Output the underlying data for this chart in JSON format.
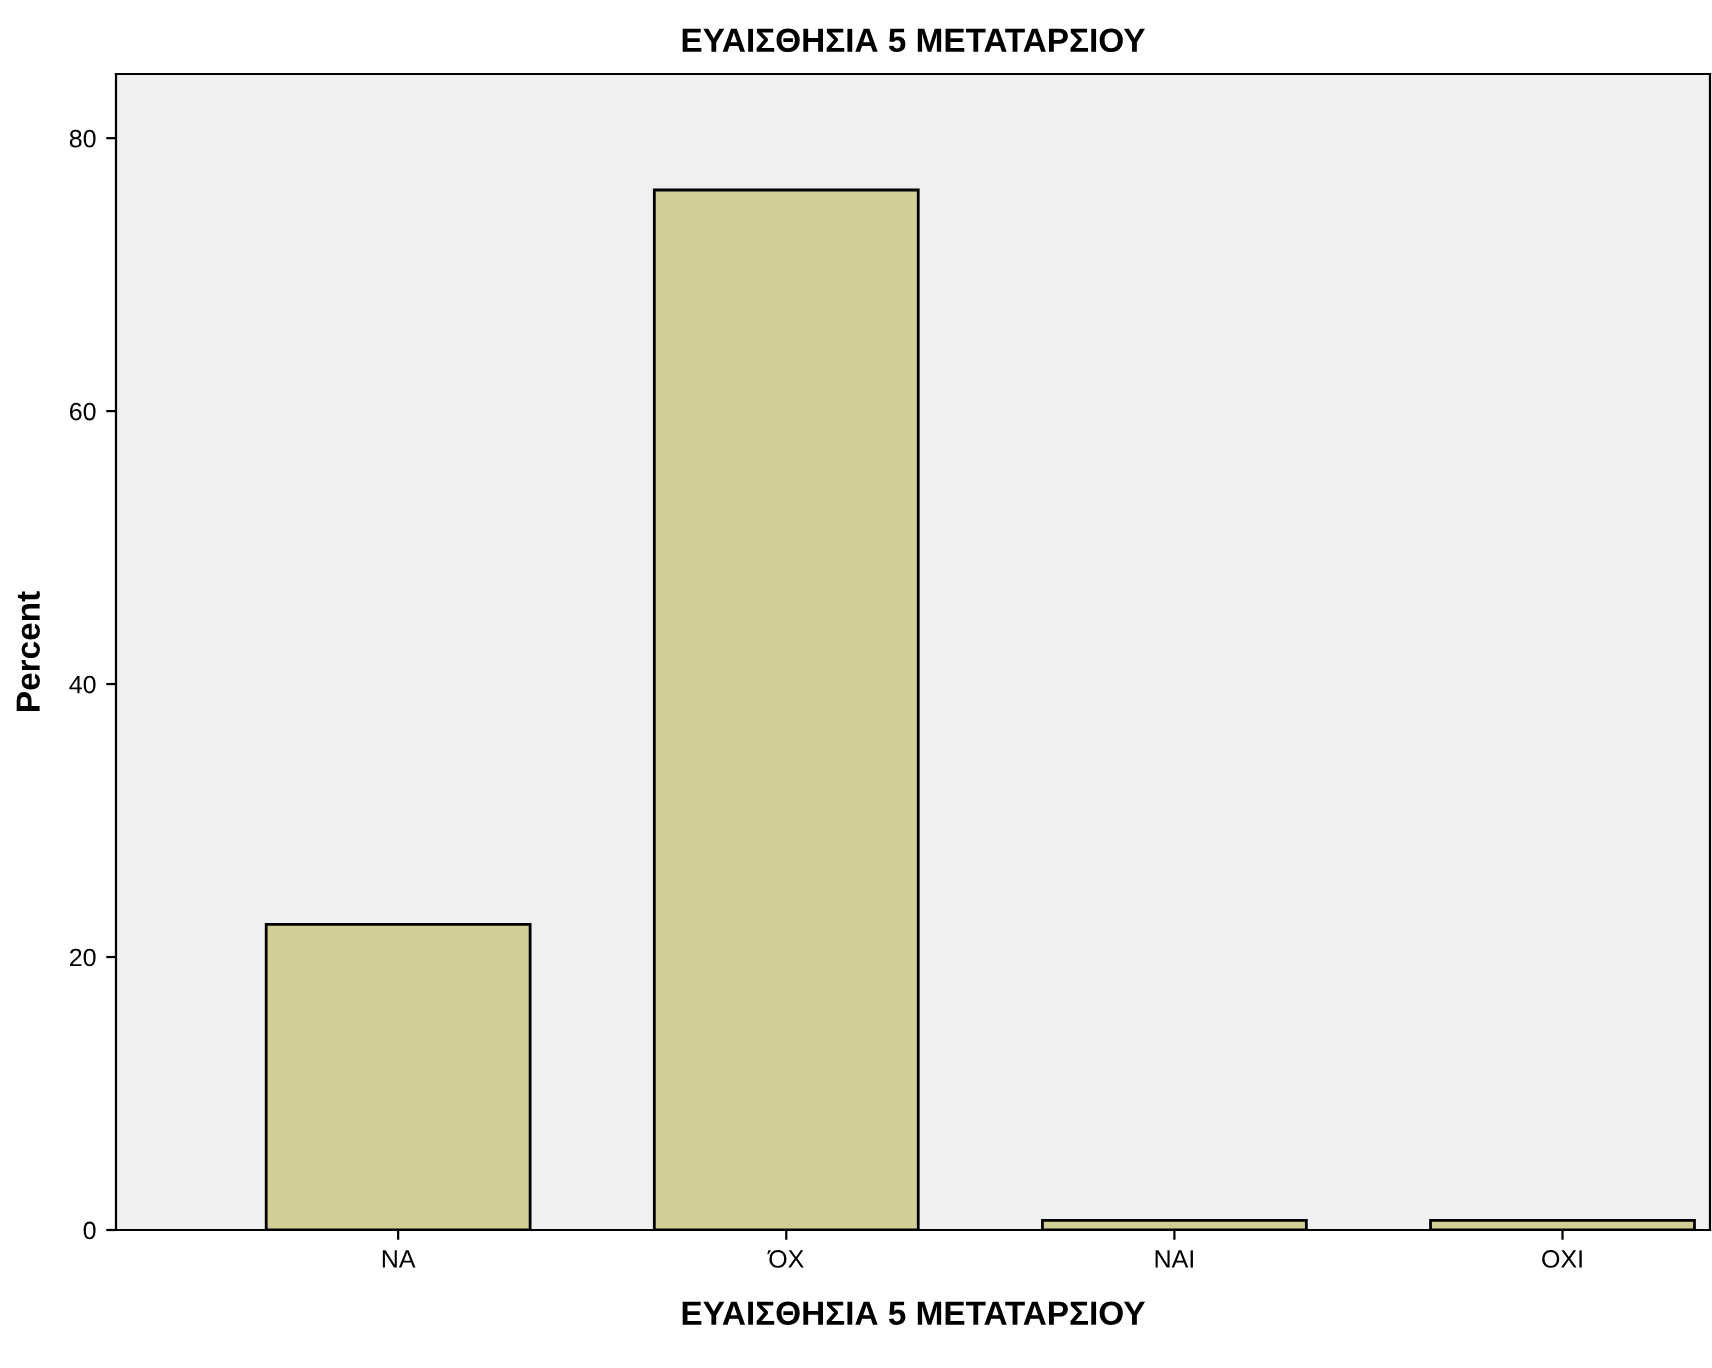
{
  "chart_data": {
    "type": "bar",
    "title": "ΕΥΑΙΣΘΗΣΙΑ 5 ΜΕΤΑΤΑΡΣΙΟΥ",
    "xlabel": "ΕΥΑΙΣΘΗΣΙΑ 5 ΜΕΤΑΤΑΡΣΙΟΥ",
    "ylabel": "Percent",
    "categories": [
      "ΝΑ",
      "ΌΧ",
      "ΝΑΙ",
      "ΟΧΙ"
    ],
    "values": [
      22.4,
      76.2,
      0.7,
      0.7
    ],
    "color": "#d2ce98",
    "ylim": [
      0,
      84.7
    ],
    "yticks": [
      0,
      20,
      40,
      60,
      80
    ],
    "grid": false,
    "legend": false
  }
}
